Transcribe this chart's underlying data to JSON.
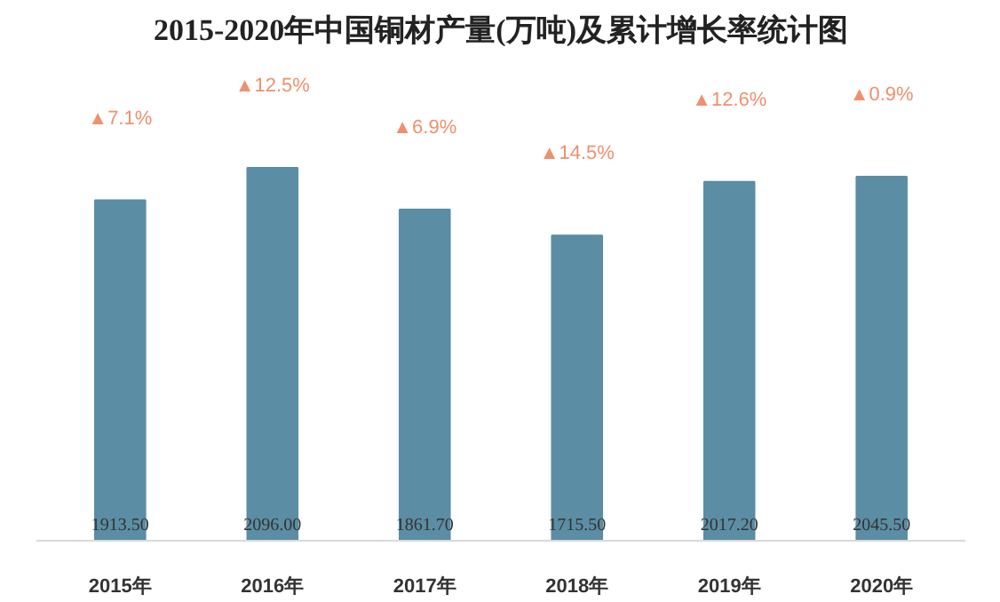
{
  "chart_data": {
    "type": "bar",
    "title": "2015-2020年中国铜材产量(万吨)及累计增长率统计图",
    "categories": [
      "2015年",
      "2016年",
      "2017年",
      "2018年",
      "2019年",
      "2020年"
    ],
    "values": [
      1913.5,
      2096.0,
      1861.7,
      1715.5,
      2017.2,
      2045.5
    ],
    "value_labels": [
      "1913.50",
      "2096.00",
      "1861.70",
      "1715.50",
      "2017.20",
      "2045.50"
    ],
    "color": "#5b8ea4",
    "annotations": [
      "▲7.1%",
      "▲12.5%",
      "▲6.9%",
      "▲14.5%",
      "▲12.6%",
      "▲0.9%"
    ],
    "grid": false
  }
}
